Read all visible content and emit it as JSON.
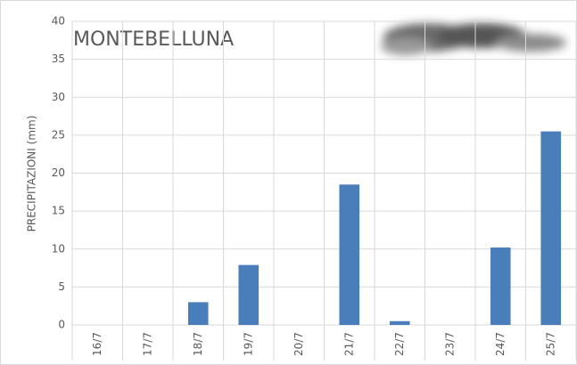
{
  "chart_data": {
    "type": "bar",
    "title": "MONTEBELLUNA",
    "y_label": "PRECIPITAZIONI (mm)",
    "categories": [
      "16/7",
      "17/7",
      "18/7",
      "19/7",
      "20/7",
      "21/7",
      "22/7",
      "23/7",
      "24/7",
      "25/7"
    ],
    "values": [
      0,
      0,
      3,
      7.9,
      0,
      18.5,
      0.5,
      0,
      10.2,
      25.5
    ],
    "color": "#4a7ebb",
    "ylim": [
      0,
      40
    ],
    "yticks": [
      0,
      5,
      10,
      15,
      20,
      25,
      30,
      35,
      40
    ],
    "grid": true
  }
}
